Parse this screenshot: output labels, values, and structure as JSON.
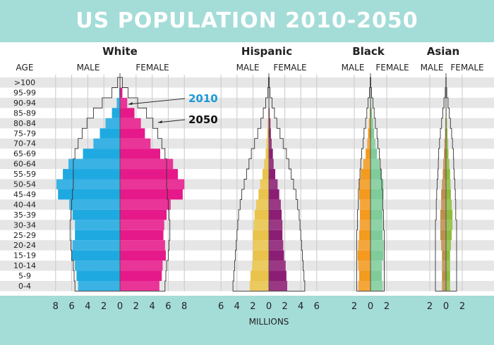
{
  "title": "US POPULATION 2010-2050",
  "age_header": "AGE",
  "male_label": "MALE",
  "female_label": "FEMALE",
  "units_label": "MILLIONS",
  "annotations": [
    "2010",
    "2050"
  ],
  "colors": {
    "background_band": "#a4dcd8",
    "stripe": "#e6e6e6",
    "white_male": "#1fa9e1",
    "white_female": "#e6198a",
    "hispanic_male": "#e9c34b",
    "hispanic_female": "#8c1d74",
    "black_male": "#f39a1f",
    "black_female": "#7fcc9a",
    "asian_male": "#bd8f4f",
    "asian_female": "#8dbb3e",
    "label_2010": "#1a9ad6",
    "outline": "#333333"
  },
  "chart_data": {
    "type": "bar",
    "subtype": "population-pyramid",
    "unit": "MILLIONS",
    "age_groups": [
      "0-4",
      "5-9",
      "10-14",
      "15-19",
      "20-24",
      "25-29",
      "30-34",
      "35-39",
      "40-44",
      "45-49",
      "50-54",
      "55-59",
      "60-64",
      "65-69",
      "70-74",
      "75-79",
      "80-84",
      "85-89",
      "90-94",
      "95-99",
      ">100"
    ],
    "panels": [
      {
        "name": "White",
        "ticks": [
          "8",
          "6",
          "4",
          "2",
          "0",
          "2",
          "4",
          "6",
          "8"
        ],
        "xlim": [
          -8,
          8
        ],
        "series": [
          {
            "name": "MALE 2010",
            "values": [
              5.2,
              5.4,
              5.6,
              6.0,
              5.9,
              5.6,
              5.6,
              5.9,
              6.3,
              7.7,
              7.9,
              7.1,
              6.4,
              4.6,
              3.3,
              2.5,
              1.8,
              1.0,
              0.4,
              0.1,
              0.02
            ]
          },
          {
            "name": "FEMALE 2010",
            "values": [
              4.9,
              5.2,
              5.3,
              5.7,
              5.6,
              5.4,
              5.5,
              5.8,
              6.3,
              7.8,
              8.0,
              7.2,
              6.6,
              5.0,
              3.8,
              3.1,
              2.6,
              1.8,
              0.9,
              0.3,
              0.05
            ]
          },
          {
            "name": "2050",
            "values": [
              5.6,
              5.7,
              5.8,
              6.0,
              6.1,
              6.2,
              6.2,
              6.1,
              6.0,
              5.9,
              5.8,
              5.8,
              5.8,
              5.6,
              5.2,
              4.7,
              4.1,
              3.3,
              2.2,
              1.0,
              0.3
            ]
          }
        ]
      },
      {
        "name": "Hispanic",
        "ticks": [
          "6",
          "4",
          "2",
          "0",
          "2",
          "4",
          "6"
        ],
        "xlim": [
          -6,
          6
        ],
        "series": [
          {
            "name": "MALE 2010",
            "values": [
              2.4,
              2.3,
              2.1,
              2.0,
              2.0,
              2.0,
              1.9,
              1.8,
              1.6,
              1.3,
              1.1,
              0.8,
              0.6,
              0.4,
              0.3,
              0.2,
              0.15,
              0.08,
              0.04,
              0.01,
              0.0
            ]
          },
          {
            "name": "FEMALE 2010",
            "values": [
              2.3,
              2.2,
              2.1,
              1.9,
              1.8,
              1.7,
              1.7,
              1.6,
              1.5,
              1.3,
              1.1,
              0.8,
              0.6,
              0.5,
              0.35,
              0.25,
              0.2,
              0.1,
              0.05,
              0.01,
              0.0
            ]
          },
          {
            "name": "2050",
            "values": [
              4.5,
              4.4,
              4.3,
              4.2,
              4.1,
              4.0,
              3.9,
              3.8,
              3.6,
              3.4,
              3.1,
              2.8,
              2.5,
              2.2,
              1.8,
              1.4,
              1.0,
              0.7,
              0.4,
              0.15,
              0.05
            ]
          }
        ]
      },
      {
        "name": "Black",
        "ticks": [
          "2",
          "0",
          "2"
        ],
        "xlim": [
          -3,
          3
        ],
        "series": [
          {
            "name": "MALE 2010",
            "values": [
              1.5,
              1.4,
              1.5,
              1.6,
              1.5,
              1.4,
              1.3,
              1.3,
              1.3,
              1.4,
              1.4,
              1.2,
              0.9,
              0.6,
              0.4,
              0.3,
              0.2,
              0.1,
              0.05,
              0.01,
              0.0
            ]
          },
          {
            "name": "FEMALE 2010",
            "values": [
              1.5,
              1.4,
              1.4,
              1.6,
              1.6,
              1.5,
              1.5,
              1.5,
              1.5,
              1.6,
              1.6,
              1.4,
              1.1,
              0.8,
              0.6,
              0.45,
              0.35,
              0.2,
              0.1,
              0.02,
              0.0
            ]
          },
          {
            "name": "2050",
            "values": [
              1.7,
              1.7,
              1.7,
              1.7,
              1.7,
              1.7,
              1.6,
              1.6,
              1.5,
              1.5,
              1.4,
              1.3,
              1.2,
              1.1,
              0.9,
              0.8,
              0.6,
              0.45,
              0.3,
              0.12,
              0.04
            ]
          }
        ]
      },
      {
        "name": "Asian",
        "ticks": [
          "2",
          "0",
          "2"
        ],
        "xlim": [
          -3,
          3
        ],
        "series": [
          {
            "name": "MALE 2010",
            "values": [
              0.5,
              0.5,
              0.5,
              0.5,
              0.6,
              0.7,
              0.7,
              0.7,
              0.6,
              0.6,
              0.5,
              0.4,
              0.35,
              0.25,
              0.2,
              0.12,
              0.08,
              0.04,
              0.02,
              0.0,
              0.0
            ]
          },
          {
            "name": "FEMALE 2010",
            "values": [
              0.5,
              0.5,
              0.5,
              0.5,
              0.6,
              0.7,
              0.8,
              0.8,
              0.7,
              0.6,
              0.55,
              0.5,
              0.4,
              0.3,
              0.25,
              0.18,
              0.12,
              0.07,
              0.03,
              0.01,
              0.0
            ]
          },
          {
            "name": "2050",
            "values": [
              1.3,
              1.3,
              1.3,
              1.3,
              1.3,
              1.3,
              1.3,
              1.2,
              1.2,
              1.15,
              1.1,
              1.0,
              0.95,
              0.9,
              0.8,
              0.7,
              0.55,
              0.4,
              0.25,
              0.1,
              0.03
            ]
          }
        ]
      }
    ]
  }
}
